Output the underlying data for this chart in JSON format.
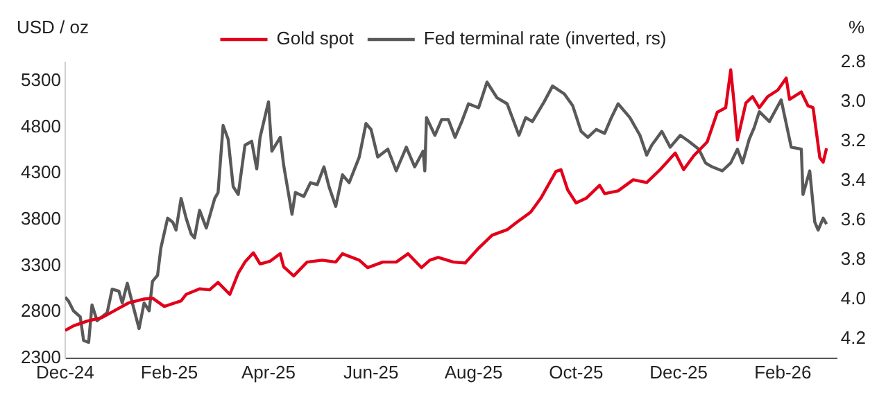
{
  "chart_data": {
    "type": "line",
    "ylabel": "USD / oz",
    "y2label": "%",
    "xlim": [
      "2024-12-01",
      "2026-03-05"
    ],
    "xticks": [
      {
        "value": "2024-12-01",
        "label": "Dec-24"
      },
      {
        "value": "2025-02-01",
        "label": "Feb-25"
      },
      {
        "value": "2025-04-01",
        "label": "Apr-25"
      },
      {
        "value": "2025-06-01",
        "label": "Jun-25"
      },
      {
        "value": "2025-08-01",
        "label": "Aug-25"
      },
      {
        "value": "2025-10-01",
        "label": "Oct-25"
      },
      {
        "value": "2025-12-01",
        "label": "Dec-25"
      },
      {
        "value": "2026-02-01",
        "label": "Feb-26"
      }
    ],
    "ylim": [
      2300,
      5500
    ],
    "yticks": [
      2300,
      2800,
      3300,
      3800,
      4300,
      4800,
      5300
    ],
    "y2lim": [
      4.3,
      2.8
    ],
    "y2ticks": [
      2.8,
      {
        "value": 3,
        "label": "3.0"
      },
      3.2,
      3.4,
      3.6,
      3.8,
      {
        "value": 4,
        "label": "4.0"
      },
      4.2
    ],
    "grid": false,
    "legend": "top",
    "marker": "none",
    "line_style": "solid",
    "series": [
      {
        "name": "Gold spot",
        "color": "#e2001a",
        "x": [
          "2024-12-01",
          "2024-12-06",
          "2024-12-14",
          "2024-12-23",
          "2024-12-31",
          "2025-01-08",
          "2025-01-17",
          "2025-01-22",
          "2025-01-29",
          "2025-02-08",
          "2025-02-11",
          "2025-02-19",
          "2025-02-25",
          "2025-03-02",
          "2025-03-09",
          "2025-03-14",
          "2025-03-18",
          "2025-03-23",
          "2025-03-27",
          "2025-04-02",
          "2025-04-08",
          "2025-04-10",
          "2025-04-16",
          "2025-04-24",
          "2025-05-03",
          "2025-05-11",
          "2025-05-15",
          "2025-05-25",
          "2025-05-30",
          "2025-06-08",
          "2025-06-16",
          "2025-06-23",
          "2025-07-01",
          "2025-07-06",
          "2025-07-11",
          "2025-07-20",
          "2025-07-27",
          "2025-08-04",
          "2025-08-12",
          "2025-08-21",
          "2025-08-26",
          "2025-09-04",
          "2025-09-10",
          "2025-09-19",
          "2025-09-22",
          "2025-09-26",
          "2025-10-01",
          "2025-10-07",
          "2025-10-15",
          "2025-10-18",
          "2025-10-26",
          "2025-11-04",
          "2025-11-12",
          "2025-11-20",
          "2025-11-29",
          "2025-12-04",
          "2025-12-10",
          "2025-12-18",
          "2025-12-24",
          "2025-12-29",
          "2026-01-01",
          "2026-01-03",
          "2026-01-05",
          "2026-01-10",
          "2026-01-14",
          "2026-01-18",
          "2026-01-23",
          "2026-01-29",
          "2026-02-03",
          "2026-02-05",
          "2026-02-12",
          "2026-02-16",
          "2026-02-19",
          "2026-02-23",
          "2026-02-25",
          "2026-02-27"
        ],
        "values": [
          2600,
          2650,
          2700,
          2740,
          2820,
          2900,
          2940,
          2950,
          2860,
          2920,
          2990,
          3050,
          3040,
          3120,
          2990,
          3220,
          3340,
          3440,
          3320,
          3350,
          3430,
          3290,
          3190,
          3340,
          3360,
          3340,
          3430,
          3360,
          3280,
          3340,
          3340,
          3430,
          3280,
          3360,
          3390,
          3340,
          3330,
          3490,
          3630,
          3690,
          3760,
          3880,
          4030,
          4320,
          4340,
          4120,
          3980,
          4030,
          4170,
          4080,
          4110,
          4230,
          4200,
          4340,
          4520,
          4340,
          4490,
          4640,
          4960,
          5010,
          5420,
          5060,
          4660,
          5060,
          5130,
          5010,
          5130,
          5200,
          5330,
          5100,
          5180,
          5030,
          5010,
          4470,
          4420,
          4570
        ]
      },
      {
        "name": "Fed terminal rate (inverted, rs)",
        "color": "#595959",
        "axis": "y2",
        "x": [
          "2024-12-01",
          "2024-12-03",
          "2024-12-06",
          "2024-12-10",
          "2024-12-12",
          "2024-12-15",
          "2024-12-17",
          "2024-12-20",
          "2024-12-26",
          "2024-12-29",
          "2025-01-02",
          "2025-01-04",
          "2025-01-07",
          "2025-01-10",
          "2025-01-14",
          "2025-01-17",
          "2025-01-20",
          "2025-01-22",
          "2025-01-25",
          "2025-01-27",
          "2025-01-31",
          "2025-02-03",
          "2025-02-05",
          "2025-02-08",
          "2025-02-11",
          "2025-02-14",
          "2025-02-16",
          "2025-02-19",
          "2025-02-23",
          "2025-02-28",
          "2025-03-02",
          "2025-03-05",
          "2025-03-08",
          "2025-03-11",
          "2025-03-14",
          "2025-03-18",
          "2025-03-22",
          "2025-03-25",
          "2025-03-27",
          "2025-04-01",
          "2025-04-03",
          "2025-04-08",
          "2025-04-10",
          "2025-04-15",
          "2025-04-17",
          "2025-04-22",
          "2025-04-26",
          "2025-04-30",
          "2025-05-04",
          "2025-05-07",
          "2025-05-11",
          "2025-05-15",
          "2025-05-19",
          "2025-05-25",
          "2025-05-29",
          "2025-06-01",
          "2025-06-05",
          "2025-06-11",
          "2025-06-16",
          "2025-06-22",
          "2025-06-27",
          "2025-07-02",
          "2025-07-03",
          "2025-07-04",
          "2025-07-09",
          "2025-07-13",
          "2025-07-17",
          "2025-07-21",
          "2025-07-25",
          "2025-07-29",
          "2025-08-04",
          "2025-08-09",
          "2025-08-15",
          "2025-08-21",
          "2025-08-28",
          "2025-09-01",
          "2025-09-05",
          "2025-09-12",
          "2025-09-17",
          "2025-09-24",
          "2025-09-29",
          "2025-10-04",
          "2025-10-08",
          "2025-10-13",
          "2025-10-18",
          "2025-10-22",
          "2025-10-26",
          "2025-11-02",
          "2025-11-08",
          "2025-11-12",
          "2025-11-15",
          "2025-11-21",
          "2025-11-26",
          "2025-12-02",
          "2025-12-07",
          "2025-12-13",
          "2025-12-17",
          "2025-12-21",
          "2025-12-27",
          "2026-01-01",
          "2026-01-05",
          "2026-01-08",
          "2026-01-12",
          "2026-01-15",
          "2026-01-18",
          "2026-01-24",
          "2026-01-31",
          "2026-02-06",
          "2026-02-12",
          "2026-02-13",
          "2026-02-17",
          "2026-02-20",
          "2026-02-22",
          "2026-02-25",
          "2026-02-27"
        ],
        "values": [
          3.99,
          4.01,
          4.06,
          4.09,
          4.21,
          4.22,
          4.03,
          4.11,
          4.07,
          3.95,
          3.96,
          4.02,
          3.92,
          4.02,
          4.15,
          4.02,
          4.06,
          3.91,
          3.88,
          3.74,
          3.59,
          3.61,
          3.65,
          3.49,
          3.59,
          3.67,
          3.69,
          3.55,
          3.64,
          3.49,
          3.46,
          3.12,
          3.19,
          3.43,
          3.47,
          3.22,
          3.2,
          3.34,
          3.18,
          3.0,
          3.25,
          3.18,
          3.32,
          3.57,
          3.46,
          3.48,
          3.41,
          3.42,
          3.33,
          3.43,
          3.53,
          3.37,
          3.41,
          3.28,
          3.11,
          3.14,
          3.28,
          3.24,
          3.35,
          3.23,
          3.33,
          3.25,
          3.35,
          3.08,
          3.17,
          3.09,
          3.09,
          3.18,
          3.1,
          3.01,
          3.03,
          2.9,
          2.98,
          3.01,
          3.17,
          3.08,
          3.1,
          3.0,
          2.92,
          2.96,
          3.02,
          3.15,
          3.18,
          3.14,
          3.16,
          3.08,
          3.01,
          3.08,
          3.17,
          3.27,
          3.22,
          3.15,
          3.23,
          3.17,
          3.2,
          3.24,
          3.31,
          3.33,
          3.35,
          3.31,
          3.24,
          3.31,
          3.19,
          3.13,
          3.05,
          3.1,
          2.99,
          3.23,
          3.24,
          3.47,
          3.35,
          3.61,
          3.65,
          3.59,
          3.62
        ]
      }
    ]
  }
}
